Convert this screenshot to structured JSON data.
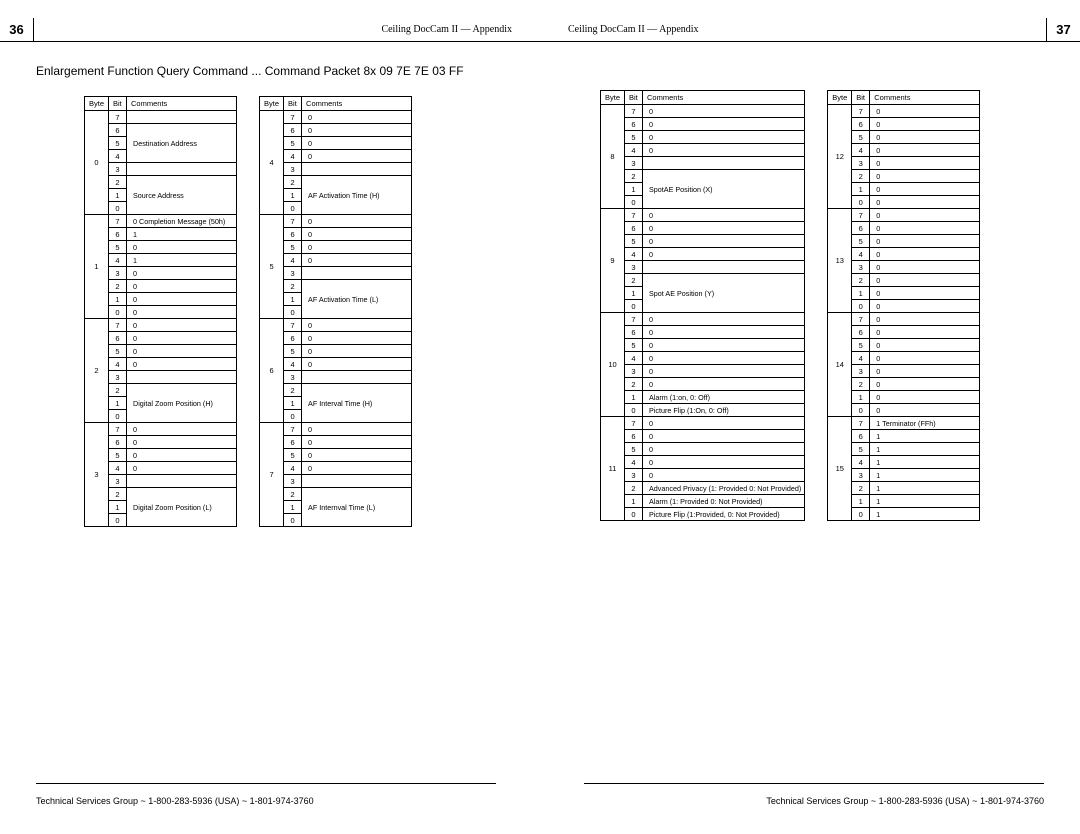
{
  "left": {
    "page_number": "36",
    "header": "Ceiling DocCam II — Appendix",
    "section_title": "Enlargement Function Query Command ... Command Packet 8x 09 7E 7E 03 FF",
    "footer": "Technical Services Group ~ 1-800-283-5936 (USA) ~ 1-801-974-3760",
    "columns": {
      "byte": "Byte",
      "bit": "Bit",
      "comments": "Comments"
    },
    "table1": [
      {
        "byte": "0",
        "rows": [
          {
            "bit": "7",
            "c": ""
          },
          {
            "bit": "6",
            "c": "Destination Address",
            "span": 3,
            "startspan": true
          },
          {
            "bit": "5",
            "c": ""
          },
          {
            "bit": "4",
            "c": ""
          },
          {
            "bit": "3",
            "c": ""
          },
          {
            "bit": "2",
            "c": "Source Address",
            "span": 3,
            "startspan": true
          },
          {
            "bit": "1",
            "c": ""
          },
          {
            "bit": "0",
            "c": ""
          }
        ]
      },
      {
        "byte": "1",
        "rows": [
          {
            "bit": "7",
            "c": "0 Completion Message (50h)"
          },
          {
            "bit": "6",
            "c": "1"
          },
          {
            "bit": "5",
            "c": "0"
          },
          {
            "bit": "4",
            "c": "1"
          },
          {
            "bit": "3",
            "c": "0"
          },
          {
            "bit": "2",
            "c": "0"
          },
          {
            "bit": "1",
            "c": "0"
          },
          {
            "bit": "0",
            "c": "0"
          }
        ]
      },
      {
        "byte": "2",
        "rows": [
          {
            "bit": "7",
            "c": "0"
          },
          {
            "bit": "6",
            "c": "0"
          },
          {
            "bit": "5",
            "c": "0"
          },
          {
            "bit": "4",
            "c": "0"
          },
          {
            "bit": "3",
            "c": ""
          },
          {
            "bit": "2",
            "c": "Digital Zoom Position (H)",
            "span": 3,
            "startspan": true
          },
          {
            "bit": "1",
            "c": ""
          },
          {
            "bit": "0",
            "c": ""
          }
        ]
      },
      {
        "byte": "3",
        "rows": [
          {
            "bit": "7",
            "c": "0"
          },
          {
            "bit": "6",
            "c": "0"
          },
          {
            "bit": "5",
            "c": "0"
          },
          {
            "bit": "4",
            "c": "0"
          },
          {
            "bit": "3",
            "c": ""
          },
          {
            "bit": "2",
            "c": "Digital Zoom Position (L)",
            "span": 3,
            "startspan": true
          },
          {
            "bit": "1",
            "c": ""
          },
          {
            "bit": "0",
            "c": ""
          }
        ]
      }
    ],
    "table2": [
      {
        "byte": "4",
        "rows": [
          {
            "bit": "7",
            "c": "0"
          },
          {
            "bit": "6",
            "c": "0"
          },
          {
            "bit": "5",
            "c": "0"
          },
          {
            "bit": "4",
            "c": "0"
          },
          {
            "bit": "3",
            "c": ""
          },
          {
            "bit": "2",
            "c": "AF Activation Time (H)",
            "span": 3,
            "startspan": true
          },
          {
            "bit": "1",
            "c": ""
          },
          {
            "bit": "0",
            "c": ""
          }
        ]
      },
      {
        "byte": "5",
        "rows": [
          {
            "bit": "7",
            "c": "0"
          },
          {
            "bit": "6",
            "c": "0"
          },
          {
            "bit": "5",
            "c": "0"
          },
          {
            "bit": "4",
            "c": "0"
          },
          {
            "bit": "3",
            "c": ""
          },
          {
            "bit": "2",
            "c": "AF Activation Time (L)",
            "span": 3,
            "startspan": true
          },
          {
            "bit": "1",
            "c": ""
          },
          {
            "bit": "0",
            "c": ""
          }
        ]
      },
      {
        "byte": "6",
        "rows": [
          {
            "bit": "7",
            "c": "0"
          },
          {
            "bit": "6",
            "c": "0"
          },
          {
            "bit": "5",
            "c": "0"
          },
          {
            "bit": "4",
            "c": "0"
          },
          {
            "bit": "3",
            "c": ""
          },
          {
            "bit": "2",
            "c": "AF Interval Time (H)",
            "span": 3,
            "startspan": true
          },
          {
            "bit": "1",
            "c": ""
          },
          {
            "bit": "0",
            "c": ""
          }
        ]
      },
      {
        "byte": "7",
        "rows": [
          {
            "bit": "7",
            "c": "0"
          },
          {
            "bit": "6",
            "c": "0"
          },
          {
            "bit": "5",
            "c": "0"
          },
          {
            "bit": "4",
            "c": "0"
          },
          {
            "bit": "3",
            "c": ""
          },
          {
            "bit": "2",
            "c": "AF Internval Time (L)",
            "span": 3,
            "startspan": true
          },
          {
            "bit": "1",
            "c": ""
          },
          {
            "bit": "0",
            "c": ""
          }
        ]
      }
    ]
  },
  "right": {
    "page_number": "37",
    "header": "Ceiling DocCam II — Appendix",
    "footer": "Technical Services Group ~ 1-800-283-5936 (USA) ~ 1-801-974-3760",
    "columns": {
      "byte": "Byte",
      "bit": "Bit",
      "comments": "Comments"
    },
    "table3": [
      {
        "byte": "8",
        "rows": [
          {
            "bit": "7",
            "c": "0"
          },
          {
            "bit": "6",
            "c": "0"
          },
          {
            "bit": "5",
            "c": "0"
          },
          {
            "bit": "4",
            "c": "0"
          },
          {
            "bit": "3",
            "c": ""
          },
          {
            "bit": "2",
            "c": "SpotAE Position (X)",
            "span": 3,
            "startspan": true
          },
          {
            "bit": "1",
            "c": ""
          },
          {
            "bit": "0",
            "c": ""
          }
        ]
      },
      {
        "byte": "9",
        "rows": [
          {
            "bit": "7",
            "c": "0"
          },
          {
            "bit": "6",
            "c": "0"
          },
          {
            "bit": "5",
            "c": "0"
          },
          {
            "bit": "4",
            "c": "0"
          },
          {
            "bit": "3",
            "c": ""
          },
          {
            "bit": "2",
            "c": "Spot AE Position (Y)",
            "span": 3,
            "startspan": true
          },
          {
            "bit": "1",
            "c": ""
          },
          {
            "bit": "0",
            "c": ""
          }
        ]
      },
      {
        "byte": "10",
        "rows": [
          {
            "bit": "7",
            "c": "0"
          },
          {
            "bit": "6",
            "c": "0"
          },
          {
            "bit": "5",
            "c": "0"
          },
          {
            "bit": "4",
            "c": "0"
          },
          {
            "bit": "3",
            "c": "0"
          },
          {
            "bit": "2",
            "c": "0"
          },
          {
            "bit": "1",
            "c": "Alarm (1:on, 0: Off)"
          },
          {
            "bit": "0",
            "c": "Picture Flip (1:On, 0: Off)"
          }
        ]
      },
      {
        "byte": "11",
        "rows": [
          {
            "bit": "7",
            "c": "0"
          },
          {
            "bit": "6",
            "c": "0"
          },
          {
            "bit": "5",
            "c": "0"
          },
          {
            "bit": "4",
            "c": "0"
          },
          {
            "bit": "3",
            "c": "0"
          },
          {
            "bit": "2",
            "c": "Advanced Privacy (1: Provided 0: Not Provided)"
          },
          {
            "bit": "1",
            "c": "Alarm (1: Provided 0: Not Provided)"
          },
          {
            "bit": "0",
            "c": "Picture Flip (1:Provided, 0: Not Provided)"
          }
        ]
      }
    ],
    "table4": [
      {
        "byte": "12",
        "rows": [
          {
            "bit": "7",
            "c": "0"
          },
          {
            "bit": "6",
            "c": "0"
          },
          {
            "bit": "5",
            "c": "0"
          },
          {
            "bit": "4",
            "c": "0"
          },
          {
            "bit": "3",
            "c": "0"
          },
          {
            "bit": "2",
            "c": "0"
          },
          {
            "bit": "1",
            "c": "0"
          },
          {
            "bit": "0",
            "c": "0"
          }
        ]
      },
      {
        "byte": "13",
        "rows": [
          {
            "bit": "7",
            "c": "0"
          },
          {
            "bit": "6",
            "c": "0"
          },
          {
            "bit": "5",
            "c": "0"
          },
          {
            "bit": "4",
            "c": "0"
          },
          {
            "bit": "3",
            "c": "0"
          },
          {
            "bit": "2",
            "c": "0"
          },
          {
            "bit": "1",
            "c": "0"
          },
          {
            "bit": "0",
            "c": "0"
          }
        ]
      },
      {
        "byte": "14",
        "rows": [
          {
            "bit": "7",
            "c": "0"
          },
          {
            "bit": "6",
            "c": "0"
          },
          {
            "bit": "5",
            "c": "0"
          },
          {
            "bit": "4",
            "c": "0"
          },
          {
            "bit": "3",
            "c": "0"
          },
          {
            "bit": "2",
            "c": "0"
          },
          {
            "bit": "1",
            "c": "0"
          },
          {
            "bit": "0",
            "c": "0"
          }
        ]
      },
      {
        "byte": "15",
        "rows": [
          {
            "bit": "7",
            "c": "1 Terminator (FFh)"
          },
          {
            "bit": "6",
            "c": "1"
          },
          {
            "bit": "5",
            "c": "1"
          },
          {
            "bit": "4",
            "c": "1"
          },
          {
            "bit": "3",
            "c": "1"
          },
          {
            "bit": "2",
            "c": "1"
          },
          {
            "bit": "1",
            "c": "1"
          },
          {
            "bit": "0",
            "c": "1"
          }
        ]
      }
    ]
  }
}
